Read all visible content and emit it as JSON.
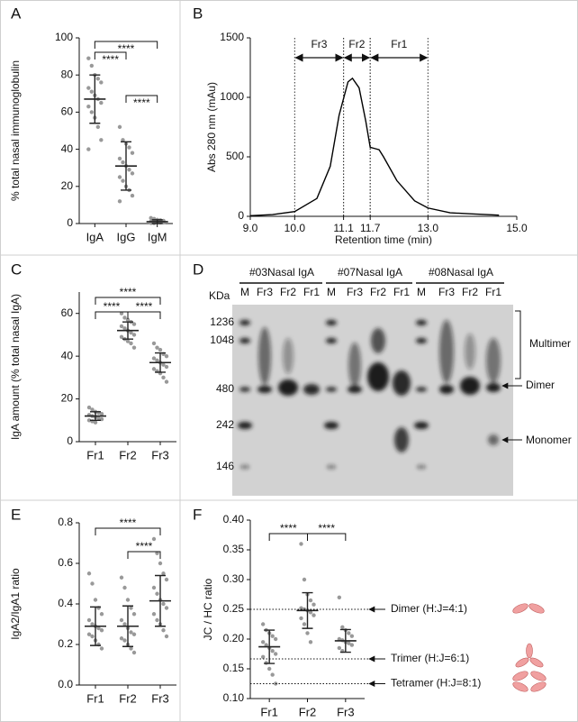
{
  "chart_data": [
    {
      "type": "dot",
      "panel": "A",
      "ylabel": "% total nasal immunoglobulin",
      "categories": [
        "IgA",
        "IgG",
        "IgM"
      ],
      "points": [
        [
          89,
          85,
          80,
          78,
          76,
          73,
          71,
          69,
          67,
          65,
          63,
          60,
          57,
          52,
          45,
          40
        ],
        [
          52,
          45,
          43,
          41,
          38,
          35,
          33,
          31,
          29,
          27,
          25,
          23,
          20,
          18,
          15,
          12
        ],
        [
          3,
          2.5,
          2,
          1.8,
          1.5,
          1.2,
          1,
          0.8,
          0.6,
          0.5,
          0.3,
          0.2
        ]
      ],
      "means": [
        67,
        31,
        1
      ],
      "sd": [
        13,
        13,
        1
      ],
      "ylim": [
        0,
        100
      ],
      "yticks": [
        0,
        20,
        40,
        60,
        80,
        100
      ],
      "point_color": "#999999",
      "color": "#222222",
      "comparisons": [
        {
          "from": "IgA",
          "to": "IgM",
          "label": "****"
        },
        {
          "from": "IgA",
          "to": "IgG",
          "label": "****"
        },
        {
          "from": "IgG",
          "to": "IgM",
          "label": "****"
        }
      ]
    },
    {
      "type": "line",
      "panel": "B",
      "ylabel": "Abs 280 nm (mAu)",
      "xlabel": "Retention time (min)",
      "x": [
        9.0,
        9.5,
        10.0,
        10.5,
        10.8,
        11.0,
        11.2,
        11.3,
        11.45,
        11.6,
        11.7,
        11.8,
        11.9,
        12.0,
        12.3,
        12.7,
        13.0,
        13.5,
        14.0,
        14.6
      ],
      "values": [
        5,
        15,
        40,
        150,
        420,
        850,
        1130,
        1160,
        1080,
        800,
        580,
        570,
        560,
        500,
        300,
        130,
        70,
        30,
        20,
        10
      ],
      "color": "#000000",
      "xlim": [
        9,
        15
      ],
      "xticks": [
        {
          "value": 9,
          "label": "9.0"
        },
        {
          "value": 10,
          "label": "10.0"
        },
        11.1,
        11.7,
        {
          "value": 13,
          "label": "13.0"
        },
        {
          "value": 15,
          "label": "15.0"
        }
      ],
      "ylim": [
        0,
        1500
      ],
      "yticks": [
        0,
        500,
        1000,
        1500
      ],
      "fractions": [
        {
          "name": "Fr3",
          "start": 10.0,
          "end": 11.1
        },
        {
          "name": "Fr2",
          "start": 11.1,
          "end": 11.7
        },
        {
          "name": "Fr1",
          "start": 11.7,
          "end": 13.0
        }
      ]
    },
    {
      "type": "dot",
      "panel": "C",
      "ylabel": "IgA amount (% total nasal IgA)",
      "categories": [
        "Fr1",
        "Fr2",
        "Fr3"
      ],
      "points": [
        [
          16,
          15,
          14,
          13.5,
          13,
          12.5,
          12,
          11.5,
          11,
          10.5,
          10,
          9.5,
          9
        ],
        [
          60,
          58,
          57,
          56,
          55,
          54,
          53,
          52,
          51,
          50,
          49,
          48,
          47,
          46,
          44
        ],
        [
          46,
          44,
          43,
          41,
          40,
          39,
          38,
          37,
          36,
          35,
          34,
          33,
          32,
          30,
          28
        ]
      ],
      "means": [
        12,
        52,
        37
      ],
      "sd": [
        2,
        4,
        4.5
      ],
      "ylim": [
        0,
        70
      ],
      "yticks": [
        0,
        20,
        40,
        60
      ],
      "point_color": "#999999",
      "color": "#222222",
      "comparisons": [
        {
          "from": "Fr1",
          "to": "Fr3",
          "label": "****"
        },
        {
          "from": "Fr1",
          "to": "Fr2",
          "label": "****"
        },
        {
          "from": "Fr2",
          "to": "Fr3",
          "label": "****"
        }
      ]
    },
    {
      "type": "dot",
      "panel": "E",
      "ylabel": "IgA2/IgA1 ratio",
      "categories": [
        "Fr1",
        "Fr2",
        "Fr3"
      ],
      "points": [
        [
          0.55,
          0.5,
          0.42,
          0.38,
          0.35,
          0.32,
          0.3,
          0.29,
          0.28,
          0.27,
          0.25,
          0.24,
          0.22,
          0.2,
          0.18
        ],
        [
          0.53,
          0.48,
          0.42,
          0.38,
          0.35,
          0.32,
          0.3,
          0.28,
          0.26,
          0.25,
          0.23,
          0.22,
          0.2,
          0.18,
          0.16
        ],
        [
          0.72,
          0.65,
          0.6,
          0.55,
          0.52,
          0.48,
          0.45,
          0.42,
          0.4,
          0.38,
          0.35,
          0.32,
          0.3,
          0.27,
          0.24
        ]
      ],
      "means": [
        0.29,
        0.29,
        0.415
      ],
      "sd": [
        0.095,
        0.1,
        0.125
      ],
      "ylim": [
        0,
        0.8
      ],
      "yticks": [
        {
          "value": 0,
          "label": "0.0"
        },
        0.2,
        0.4,
        0.6,
        0.8
      ],
      "point_color": "#999999",
      "color": "#222222",
      "comparisons": [
        {
          "from": "Fr1",
          "to": "Fr3",
          "label": "****"
        },
        {
          "from": "Fr2",
          "to": "Fr3",
          "label": "****"
        }
      ]
    },
    {
      "type": "dot",
      "panel": "F",
      "ylabel": "JC / HC ratio",
      "categories": [
        "Fr1",
        "Fr2",
        "Fr3"
      ],
      "points": [
        [
          0.225,
          0.215,
          0.21,
          0.205,
          0.2,
          0.195,
          0.19,
          0.185,
          0.18,
          0.175,
          0.17,
          0.16,
          0.15,
          0.14,
          0.125
        ],
        [
          0.36,
          0.3,
          0.275,
          0.265,
          0.258,
          0.252,
          0.25,
          0.248,
          0.245,
          0.24,
          0.235,
          0.225,
          0.21,
          0.195
        ],
        [
          0.27,
          0.22,
          0.215,
          0.21,
          0.205,
          0.2,
          0.198,
          0.195,
          0.193,
          0.19,
          0.185,
          0.18
        ]
      ],
      "means": [
        0.187,
        0.248,
        0.197
      ],
      "sd": [
        0.028,
        0.03,
        0.019
      ],
      "ylim": [
        0.1,
        0.4
      ],
      "yticks": [
        {
          "value": 0.1,
          "label": "0.10"
        },
        0.15,
        {
          "value": 0.2,
          "label": "0.20"
        },
        0.25,
        {
          "value": 0.3,
          "label": "0.30"
        },
        0.35,
        {
          "value": 0.4,
          "label": "0.40"
        }
      ],
      "point_color": "#999999",
      "color": "#222222",
      "comparisons": [
        {
          "from": "Fr1",
          "to": "Fr2",
          "label": "****"
        },
        {
          "from": "Fr2",
          "to": "Fr3",
          "label": "****"
        }
      ],
      "reference_lines": [
        {
          "value": 0.25,
          "label": "Dimer (H:J=4:1)"
        },
        {
          "value": 0.1667,
          "label": "Trimer (H:J=6:1)"
        },
        {
          "value": 0.125,
          "label": "Tetramer (H:J=8:1)"
        }
      ]
    }
  ],
  "gel": {
    "panel": "D",
    "unit": "KDa",
    "samples": [
      {
        "name": "#03Nasal IgA",
        "lanes": [
          "M",
          "Fr3",
          "Fr2",
          "Fr1"
        ]
      },
      {
        "name": "#07Nasal IgA",
        "lanes": [
          "M",
          "Fr3",
          "Fr2",
          "Fr1"
        ]
      },
      {
        "name": "#08Nasal IgA",
        "lanes": [
          "M",
          "Fr3",
          "Fr2",
          "Fr1"
        ]
      }
    ],
    "markers": [
      "1236",
      "1048",
      "480",
      "242",
      "146"
    ],
    "bands": [
      "Multimer",
      "Dimer",
      "Monomer"
    ]
  }
}
